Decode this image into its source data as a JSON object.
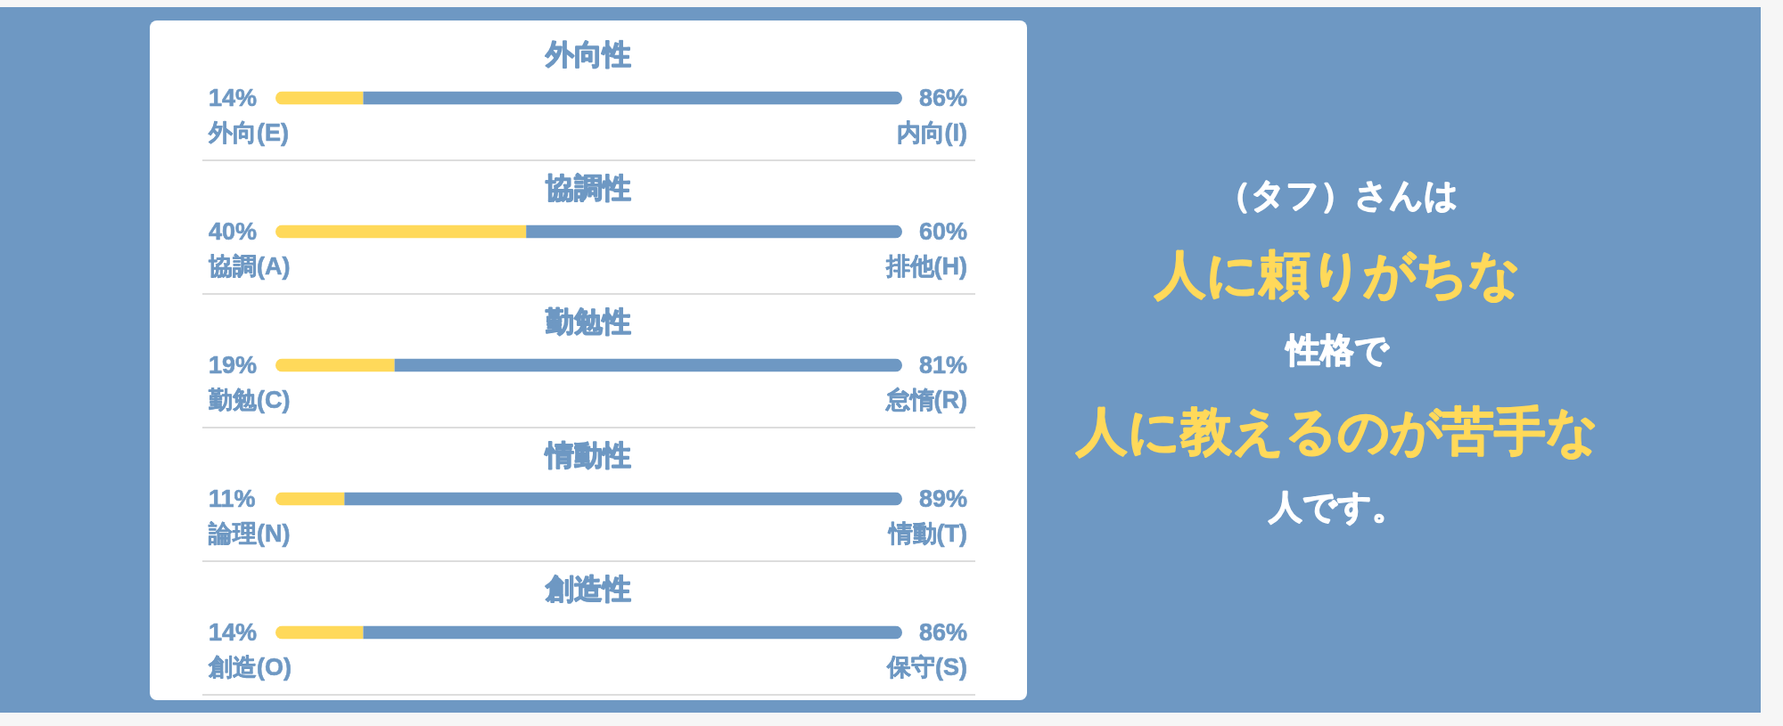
{
  "chart_data": [
    {
      "type": "bar",
      "orientation": "horizontal",
      "stacked": true,
      "title": "外向性",
      "categories": [
        null
      ],
      "xlim": [
        0,
        100
      ],
      "series": [
        {
          "name": "外向(E)",
          "color": "#ffd95a",
          "values": [
            14
          ],
          "value_labels": [
            "14%"
          ]
        },
        {
          "name": "内向(I)",
          "color": "#6e98c3",
          "values": [
            86
          ],
          "value_labels": [
            "86%"
          ]
        }
      ]
    },
    {
      "type": "bar",
      "orientation": "horizontal",
      "stacked": true,
      "title": "協調性",
      "categories": [
        null
      ],
      "xlim": [
        0,
        100
      ],
      "series": [
        {
          "name": "協調(A)",
          "color": "#ffd95a",
          "values": [
            40
          ],
          "value_labels": [
            "40%"
          ]
        },
        {
          "name": "排他(H)",
          "color": "#6e98c3",
          "values": [
            60
          ],
          "value_labels": [
            "60%"
          ]
        }
      ]
    },
    {
      "type": "bar",
      "orientation": "horizontal",
      "stacked": true,
      "title": "勤勉性",
      "categories": [
        null
      ],
      "xlim": [
        0,
        100
      ],
      "series": [
        {
          "name": "勤勉(C)",
          "color": "#ffd95a",
          "values": [
            19
          ],
          "value_labels": [
            "19%"
          ]
        },
        {
          "name": "怠惰(R)",
          "color": "#6e98c3",
          "values": [
            81
          ],
          "value_labels": [
            "81%"
          ]
        }
      ]
    },
    {
      "type": "bar",
      "orientation": "horizontal",
      "stacked": true,
      "title": "情動性",
      "categories": [
        null
      ],
      "xlim": [
        0,
        100
      ],
      "series": [
        {
          "name": "論理(N)",
          "color": "#ffd95a",
          "values": [
            11
          ],
          "value_labels": [
            "11%"
          ]
        },
        {
          "name": "情動(T)",
          "color": "#6e98c3",
          "values": [
            89
          ],
          "value_labels": [
            "89%"
          ]
        }
      ]
    },
    {
      "type": "bar",
      "orientation": "horizontal",
      "stacked": true,
      "title": "創造性",
      "categories": [
        null
      ],
      "xlim": [
        0,
        100
      ],
      "series": [
        {
          "name": "創造(O)",
          "color": "#ffd95a",
          "values": [
            14
          ],
          "value_labels": [
            "14%"
          ]
        },
        {
          "name": "保守(S)",
          "color": "#6e98c3",
          "values": [
            86
          ],
          "value_labels": [
            "86%"
          ]
        }
      ]
    },
    {
      "type": "other",
      "annotations": [
        "（タフ）さんは",
        "人に頼りがちな",
        "性格で",
        "人に教えるのが苦手な",
        "人です。"
      ]
    }
  ]
}
